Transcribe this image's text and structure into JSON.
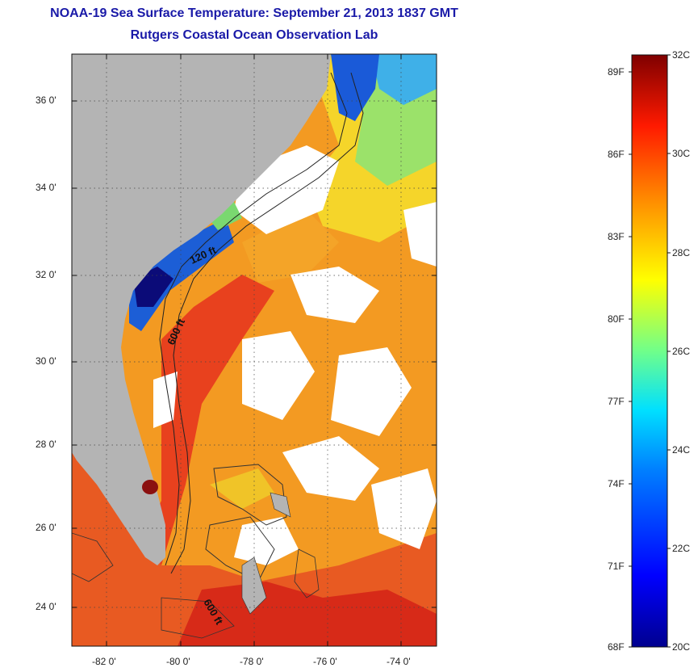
{
  "header": {
    "title": "NOAA-19 Sea Surface Temperature:  September 21, 2013 1837 GMT",
    "subtitle": "Rutgers Coastal Ocean Observation Lab"
  },
  "map": {
    "lat_ticks": [
      "36 0'",
      "34 0'",
      "32 0'",
      "30 0'",
      "28 0'",
      "26 0'",
      "24 0'"
    ],
    "lon_ticks": [
      "-82 0'",
      "-80 0'",
      "-78 0'",
      "-76 0'",
      "-74 0'"
    ],
    "contour_labels": [
      "120 ft",
      "600 ft",
      "600 ft"
    ],
    "colors": {
      "land": "#b4b4b4",
      "cloud": "#ffffff",
      "warm": "#e8411e",
      "orange": "#f7941d",
      "yellow": "#f5e11e",
      "green": "#8ee05a",
      "cyan": "#30c8e6",
      "blue": "#1550d0",
      "navy": "#0a0a70"
    }
  },
  "colorbar": {
    "celsius_labels": [
      "32C",
      "30C",
      "28C",
      "26C",
      "24C",
      "22C",
      "20C"
    ],
    "fahrenheit_labels": [
      "89F",
      "86F",
      "83F",
      "80F",
      "77F",
      "74F",
      "71F",
      "68F"
    ],
    "range_c": [
      20,
      32
    ],
    "range_f": [
      68,
      89.6
    ]
  }
}
